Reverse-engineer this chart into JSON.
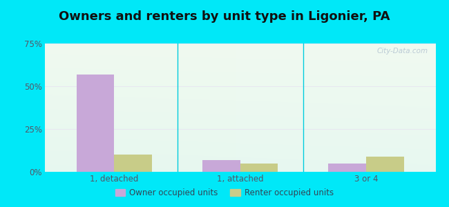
{
  "title": "Owners and renters by unit type in Ligonier, PA",
  "categories": [
    "1, detached",
    "1, attached",
    "3 or 4"
  ],
  "owner_values": [
    57,
    7,
    5
  ],
  "renter_values": [
    10,
    5,
    9
  ],
  "owner_color": "#c8a8d8",
  "renter_color": "#c8cc88",
  "bar_width": 0.3,
  "ylim": [
    0,
    75
  ],
  "yticks": [
    0,
    25,
    50,
    75
  ],
  "yticklabels": [
    "0%",
    "25%",
    "50%",
    "75%"
  ],
  "background_outer": "#00e8f8",
  "background_inner_topleft": "#dff0e8",
  "background_inner_topright": "#f0f8f0",
  "background_inner_bottomleft": "#c8eef0",
  "background_inner_bottomright": "#e0f5e8",
  "grid_color": "#e8e8f0",
  "title_fontsize": 13,
  "tick_fontsize": 8.5,
  "legend_label_owner": "Owner occupied units",
  "legend_label_renter": "Renter occupied units",
  "watermark": "City-Data.com",
  "separator_color": "#00ccdd"
}
